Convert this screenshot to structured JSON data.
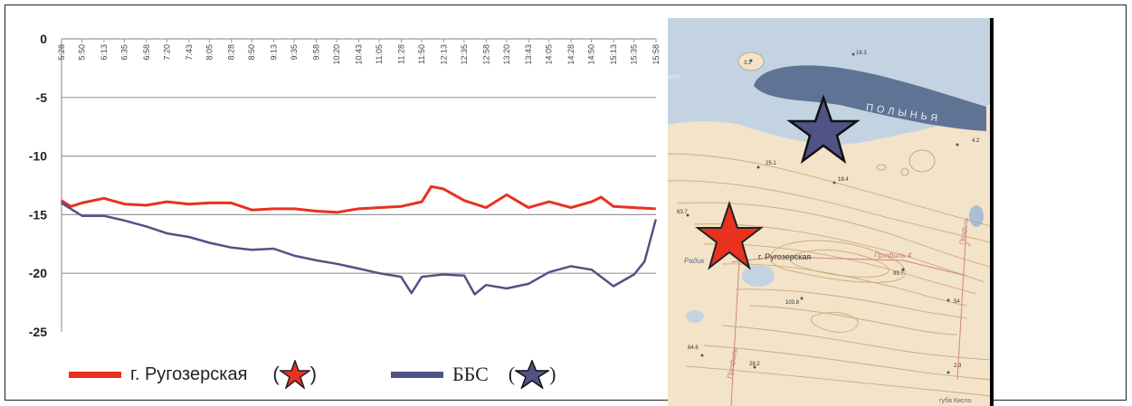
{
  "chart_data": {
    "type": "line",
    "ylim": [
      -25,
      0
    ],
    "yticks": [
      0,
      -5,
      -10,
      -15,
      -20,
      -25
    ],
    "ytick_labels": [
      "0",
      "-5",
      "-10",
      "-15",
      "-20",
      "-25"
    ],
    "gridlines": [
      -5,
      -10,
      -15,
      -20
    ],
    "x_tick_labels": [
      "5:28",
      "5:50",
      "6:13",
      "6:35",
      "6:58",
      "7:20",
      "7:43",
      "8:05",
      "8:28",
      "8:50",
      "9:13",
      "9:35",
      "9:58",
      "10:20",
      "10:43",
      "11:05",
      "11:28",
      "11:50",
      "12:13",
      "12:35",
      "12:58",
      "13:20",
      "13:43",
      "14:05",
      "14:28",
      "14:50",
      "15:13",
      "15:35",
      "15:58"
    ],
    "x_values_hours": [
      5.47,
      5.83,
      6.22,
      6.58,
      6.97,
      7.33,
      7.72,
      8.08,
      8.47,
      8.83,
      9.22,
      9.58,
      9.97,
      10.33,
      10.72,
      11.08,
      11.47,
      11.83,
      12.22,
      12.58,
      12.97,
      13.33,
      13.72,
      14.08,
      14.47,
      14.83,
      15.22,
      15.58,
      15.97
    ],
    "series": [
      {
        "name": "г. Ругозерская",
        "color": "#e8311f",
        "x": [
          "5:28",
          "5:38",
          "5:50",
          "6:13",
          "6:35",
          "6:58",
          "7:20",
          "7:43",
          "8:05",
          "8:28",
          "8:50",
          "9:13",
          "9:35",
          "9:58",
          "10:20",
          "10:43",
          "11:05",
          "11:28",
          "11:50",
          "12:00",
          "12:13",
          "12:35",
          "12:58",
          "13:20",
          "13:43",
          "14:05",
          "14:28",
          "14:50",
          "15:00",
          "15:13",
          "15:35",
          "15:58"
        ],
        "values": [
          -13.8,
          -14.3,
          -14.0,
          -13.6,
          -14.1,
          -14.2,
          -13.9,
          -14.1,
          -14.0,
          -14.0,
          -14.6,
          -14.5,
          -14.5,
          -14.7,
          -14.8,
          -14.5,
          -14.4,
          -14.3,
          -13.9,
          -12.6,
          -12.8,
          -13.8,
          -14.4,
          -13.3,
          -14.4,
          -13.9,
          -14.4,
          -13.9,
          -13.5,
          -14.3,
          -14.4,
          -14.5
        ]
      },
      {
        "name": "ББС",
        "color": "#4f5385",
        "x": [
          "5:28",
          "5:50",
          "6:13",
          "6:35",
          "6:58",
          "7:20",
          "7:43",
          "8:05",
          "8:28",
          "8:50",
          "9:13",
          "9:35",
          "9:58",
          "10:20",
          "10:43",
          "11:05",
          "11:28",
          "11:39",
          "11:50",
          "12:13",
          "12:35",
          "12:46",
          "12:58",
          "13:20",
          "13:43",
          "14:05",
          "14:28",
          "14:50",
          "15:13",
          "15:35",
          "15:46",
          "15:58"
        ],
        "values": [
          -14.0,
          -15.1,
          -15.1,
          -15.5,
          -16.0,
          -16.6,
          -16.9,
          -17.4,
          -17.8,
          -18.0,
          -17.9,
          -18.5,
          -18.9,
          -19.2,
          -19.6,
          -20.0,
          -20.3,
          -21.7,
          -20.3,
          -20.1,
          -20.2,
          -21.8,
          -21.0,
          -21.3,
          -20.9,
          -19.9,
          -19.4,
          -19.7,
          -21.1,
          -20.1,
          -19.0,
          -15.4
        ]
      }
    ]
  },
  "legend": {
    "red_label": "г. Ругозерская",
    "blue_label": "ББС",
    "red_color": "#e8311f",
    "blue_color": "#4f5385",
    "open_paren": "(",
    "close_paren": ")"
  },
  "map": {
    "polynya_label": "ПОЛЫНЬЯ",
    "mountain_label": "г. Ругозерская",
    "profile_4_label": "Профиль 4",
    "profile_2_label": "Профиль 2",
    "profile_label": "Профиль",
    "radikal_label": "Радик",
    "elevations": [
      "3.2",
      "16.3",
      "4.2",
      "25.1",
      "18.4",
      "63.7",
      "99.7",
      "103.8",
      "54",
      "64.6",
      "28.2",
      "2.3"
    ],
    "left_edge_label": "аяя",
    "bottom_edge_label": "губа Кисло"
  }
}
